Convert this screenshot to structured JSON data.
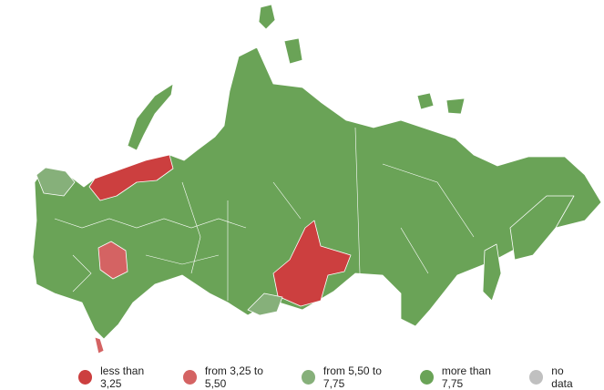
{
  "map": {
    "colors": {
      "less_than_3_25": "#cc3f3f",
      "from_3_25_to_5_50": "#d46363",
      "from_5_50_to_7_75": "#86b07a",
      "more_than_7_75": "#6aa357",
      "no_data": "#c0c0c0"
    }
  },
  "legend": {
    "items": [
      {
        "label": "less than 3,25",
        "color": "#cc3f3f"
      },
      {
        "label": "from 3,25 to 5,50",
        "color": "#d46363"
      },
      {
        "label": "from 5,50 to 7,75",
        "color": "#86b07a"
      },
      {
        "label": "more than 7,75",
        "color": "#6aa357"
      },
      {
        "label": "no data",
        "color": "#c0c0c0"
      }
    ]
  }
}
